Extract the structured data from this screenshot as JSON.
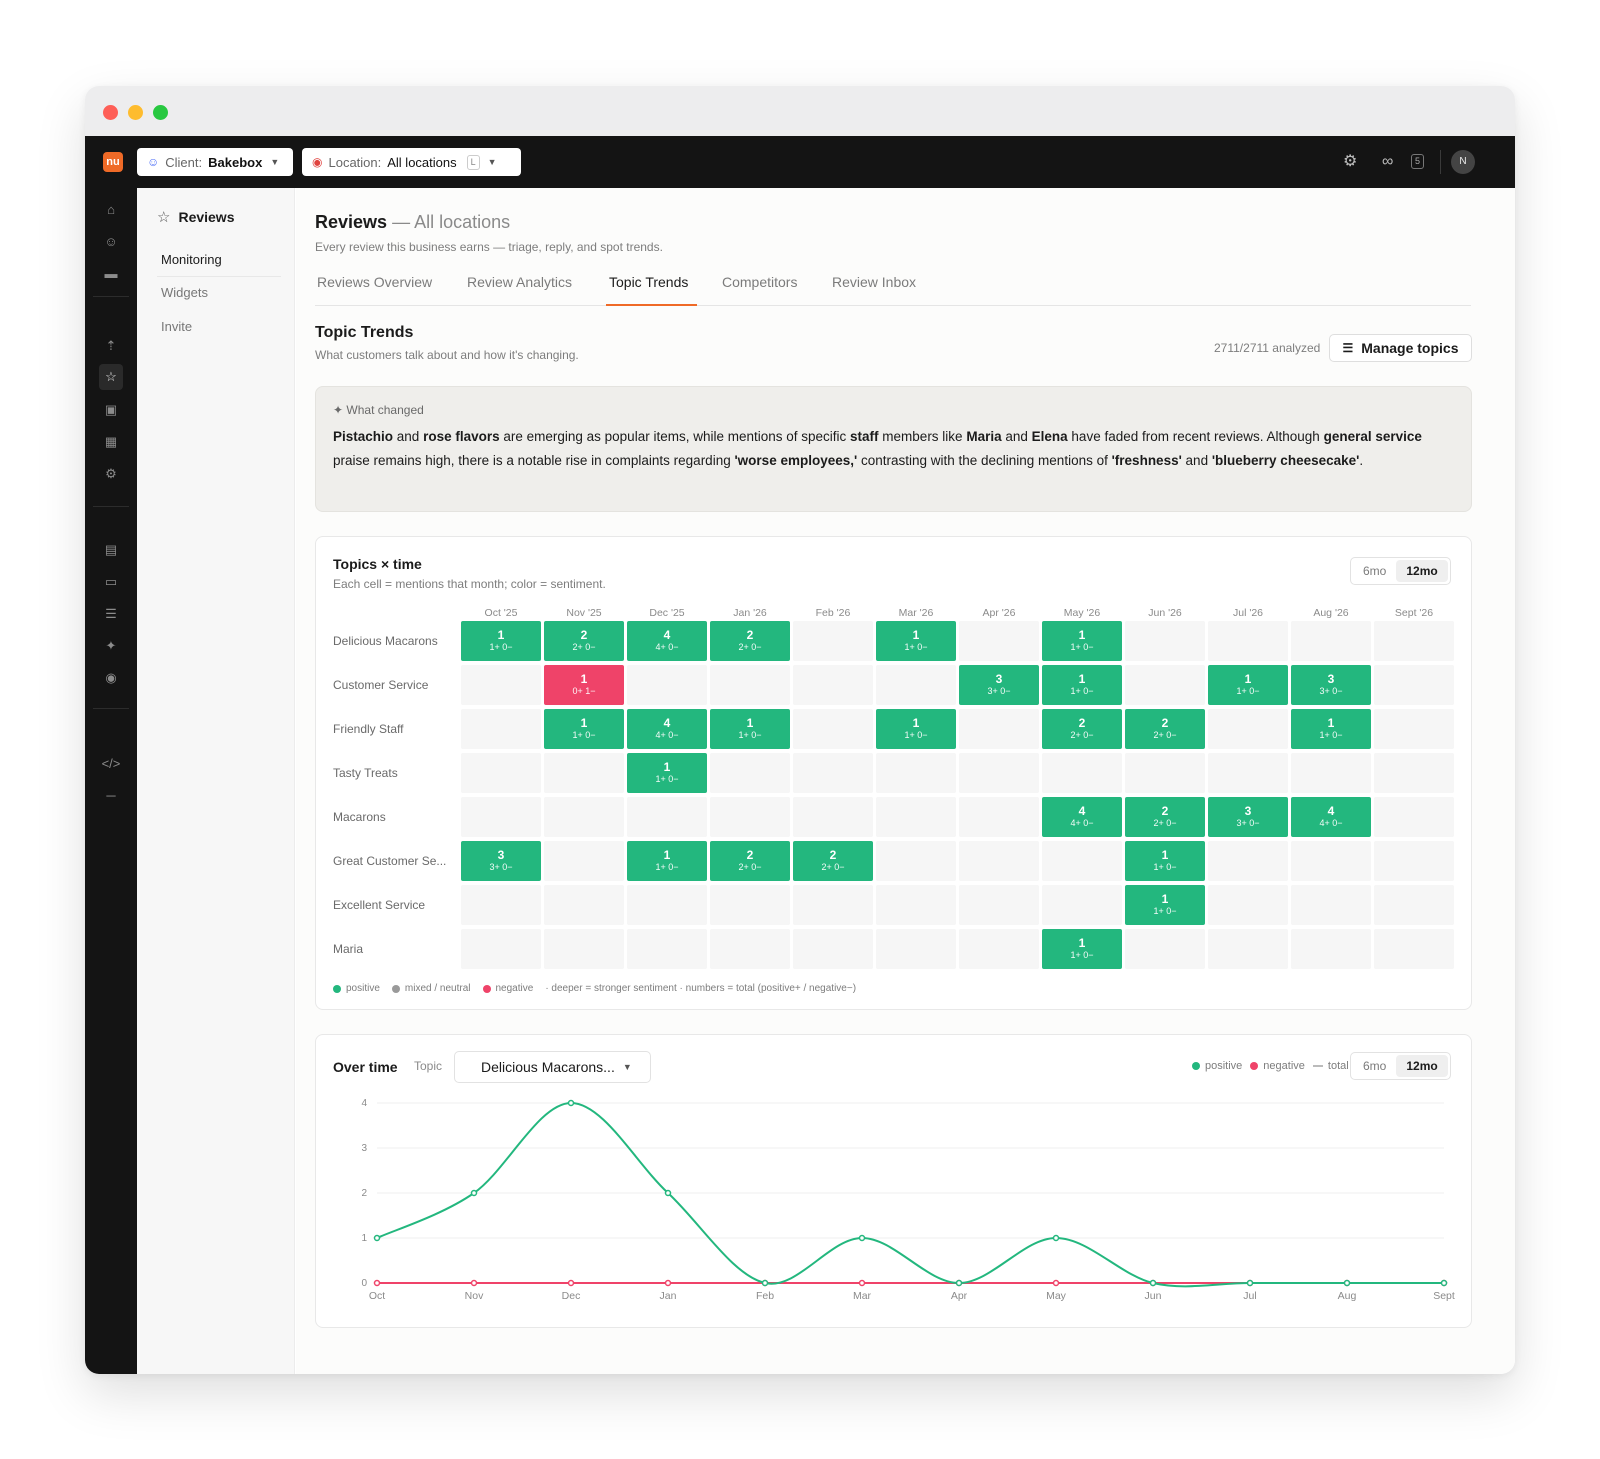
{
  "topbar": {
    "logo": "nu",
    "client_label": "Client:",
    "client_value": "Bakebox",
    "location_label": "Location:",
    "location_value": "All locations",
    "location_shortcut": "L",
    "credits_badge": "5",
    "avatar_initial": "N"
  },
  "subnav": {
    "header": "Reviews",
    "items": [
      "Monitoring",
      "Widgets",
      "Invite"
    ],
    "active_index": 0
  },
  "page": {
    "title": "Reviews",
    "title_suffix": "— All locations",
    "subtitle": "Every review this business earns — triage, reply, and spot trends."
  },
  "tabs": [
    "Reviews Overview",
    "Review Analytics",
    "Topic Trends",
    "Competitors",
    "Review Inbox"
  ],
  "active_tab": 2,
  "section": {
    "title": "Topic Trends",
    "subtitle": "What customers talk about and how it's changing.",
    "analyzed": "2711/2711 analyzed",
    "manage_label": "Manage topics"
  },
  "what_changed": {
    "heading": "What changed",
    "segments": [
      {
        "t": "Pistachio",
        "b": true
      },
      {
        "t": " and ",
        "b": false
      },
      {
        "t": "rose flavors",
        "b": true
      },
      {
        "t": " are emerging as popular items, while mentions of specific ",
        "b": false
      },
      {
        "t": "staff",
        "b": true
      },
      {
        "t": " members like ",
        "b": false
      },
      {
        "t": "Maria",
        "b": true
      },
      {
        "t": " and ",
        "b": false
      },
      {
        "t": "Elena",
        "b": true
      },
      {
        "t": " have faded from recent reviews. Although ",
        "b": false
      },
      {
        "t": "general service",
        "b": true
      },
      {
        "t": " praise remains high, there is a notable rise in complaints regarding ",
        "b": false
      },
      {
        "t": "'worse employees,'",
        "b": true
      },
      {
        "t": " contrasting with the declining mentions of ",
        "b": false
      },
      {
        "t": "'freshness'",
        "b": true
      },
      {
        "t": " and ",
        "b": false
      },
      {
        "t": "'blueberry cheesecake'",
        "b": true
      },
      {
        "t": ".",
        "b": false
      }
    ]
  },
  "heatmap": {
    "title": "Topics × time",
    "subtitle": "Each cell = mentions that month; color = sentiment.",
    "ranges": [
      "6mo",
      "12mo"
    ],
    "active_range": 1,
    "months": [
      "Oct '25",
      "Nov '25",
      "Dec '25",
      "Jan '26",
      "Feb '26",
      "Mar '26",
      "Apr '26",
      "May '26",
      "Jun '26",
      "Jul '26",
      "Aug '26",
      "Sept '26"
    ],
    "rows": [
      {
        "topic": "Delicious Macarons",
        "cells": [
          [
            1,
            0
          ],
          [
            2,
            0
          ],
          [
            4,
            0
          ],
          [
            2,
            0
          ],
          null,
          [
            1,
            0
          ],
          null,
          [
            1,
            0
          ],
          null,
          null,
          null,
          null
        ]
      },
      {
        "topic": "Customer Service",
        "cells": [
          null,
          [
            0,
            1
          ],
          null,
          null,
          null,
          null,
          [
            3,
            0
          ],
          [
            1,
            0
          ],
          null,
          [
            1,
            0
          ],
          [
            3,
            0
          ],
          null
        ]
      },
      {
        "topic": "Friendly Staff",
        "cells": [
          null,
          [
            1,
            0
          ],
          [
            4,
            0
          ],
          [
            1,
            0
          ],
          null,
          [
            1,
            0
          ],
          null,
          [
            2,
            0
          ],
          [
            2,
            0
          ],
          null,
          [
            1,
            0
          ],
          null
        ]
      },
      {
        "topic": "Tasty Treats",
        "cells": [
          null,
          null,
          [
            1,
            0
          ],
          null,
          null,
          null,
          null,
          null,
          null,
          null,
          null,
          null
        ]
      },
      {
        "topic": "Macarons",
        "cells": [
          null,
          null,
          null,
          null,
          null,
          null,
          null,
          [
            4,
            0
          ],
          [
            2,
            0
          ],
          [
            3,
            0
          ],
          [
            4,
            0
          ],
          null
        ]
      },
      {
        "topic": "Great Customer Se...",
        "cells": [
          [
            3,
            0
          ],
          null,
          [
            1,
            0
          ],
          [
            2,
            0
          ],
          [
            2,
            0
          ],
          null,
          null,
          null,
          [
            1,
            0
          ],
          null,
          null,
          null
        ]
      },
      {
        "topic": "Excellent Service",
        "cells": [
          null,
          null,
          null,
          null,
          null,
          null,
          null,
          null,
          [
            1,
            0
          ],
          null,
          null,
          null
        ]
      },
      {
        "topic": "Maria",
        "cells": [
          null,
          null,
          null,
          null,
          null,
          null,
          null,
          [
            1,
            0
          ],
          null,
          null,
          null,
          null
        ]
      }
    ],
    "legend": {
      "positive": "positive",
      "mixed": "mixed / neutral",
      "negative": "negative",
      "note": "· deeper = stronger sentiment · numbers = total (positive+ / negative−)"
    },
    "colors": {
      "positive": "#23b77e",
      "negative": "#ef4369",
      "mixed": "#9a9a9a",
      "empty": "#f6f6f6"
    }
  },
  "over_time": {
    "title": "Over time",
    "topic_label": "Topic",
    "topic_value": "Delicious Macarons...",
    "legend": {
      "positive": "positive",
      "negative": "negative",
      "total": "total"
    },
    "ranges": [
      "6mo",
      "12mo"
    ],
    "active_range": 1
  },
  "chart_data": {
    "type": "line",
    "x": [
      "Oct",
      "Nov",
      "Dec",
      "Jan",
      "Feb",
      "Mar",
      "Apr",
      "May",
      "Jun",
      "Jul",
      "Aug",
      "Sept"
    ],
    "series": [
      {
        "name": "positive",
        "color": "#23b77e",
        "values": [
          1,
          2,
          4,
          2,
          0,
          1,
          0,
          1,
          0,
          0,
          0,
          0
        ]
      },
      {
        "name": "negative",
        "color": "#ef4369",
        "values": [
          0,
          0,
          0,
          0,
          0,
          0,
          0,
          0,
          0,
          0,
          0,
          0
        ]
      }
    ],
    "ylim": [
      0,
      4
    ],
    "yticks": [
      0,
      1,
      2,
      3,
      4
    ],
    "grid": true,
    "legend": "top-right"
  }
}
